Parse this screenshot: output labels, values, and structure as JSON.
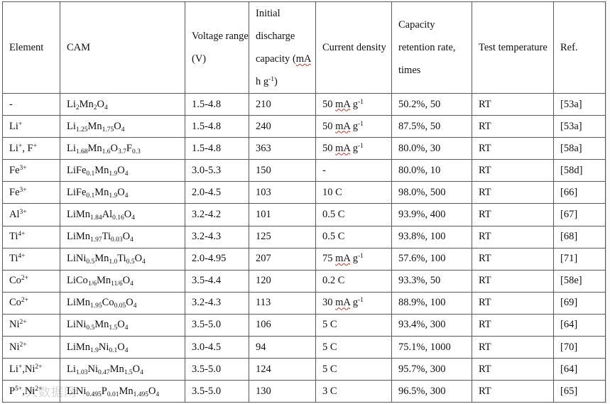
{
  "table": {
    "headers": {
      "element": "Element",
      "cam": "CAM",
      "voltage": "Voltage range (V)",
      "capacity": "Initial discharge capacity",
      "capacity_unit_prefix": "(",
      "capacity_unit_mah": "mA",
      "capacity_unit_suffix": " h g",
      "capacity_unit_sup": "-1",
      "capacity_unit_close": ")",
      "current": "Current density",
      "retention": "Capacity retention rate, times",
      "temperature": "Test temperature",
      "ref": "Ref."
    },
    "current_unit_mah": "mA",
    "current_unit_g": " g",
    "current_unit_sup": "-1",
    "rows": [
      {
        "el_base": "-",
        "el_sup": "",
        "cam": [
          {
            "t": "Li"
          },
          {
            "t": "2",
            "s": "sub"
          },
          {
            "t": "Mn"
          },
          {
            "t": "2",
            "s": "sub"
          },
          {
            "t": "O"
          },
          {
            "t": "4",
            "s": "sub"
          }
        ],
        "voltage": "1.5-4.8",
        "capacity": "210",
        "current_num": "50 ",
        "current_is_mag": true,
        "current_text": "",
        "retention": "50.2%, 50",
        "temp": "RT",
        "ref": "[53a]"
      },
      {
        "el_base": "Li",
        "el_sup": "+",
        "cam": [
          {
            "t": "Li"
          },
          {
            "t": "1.25",
            "s": "sub"
          },
          {
            "t": "Mn"
          },
          {
            "t": "1.75",
            "s": "sub"
          },
          {
            "t": "O"
          },
          {
            "t": "4",
            "s": "sub"
          }
        ],
        "voltage": "1.5-4.8",
        "capacity": "240",
        "current_num": "50 ",
        "current_is_mag": true,
        "current_text": "",
        "retention": "87.5%, 50",
        "temp": "RT",
        "ref": "[53a]"
      },
      {
        "el_base": "Li",
        "el_sup": "+",
        "el_extra_base": ", F",
        "el_extra_sup": "+",
        "cam": [
          {
            "t": "Li"
          },
          {
            "t": "1.68",
            "s": "sub"
          },
          {
            "t": "Mn"
          },
          {
            "t": "1.6",
            "s": "sub"
          },
          {
            "t": "O"
          },
          {
            "t": "3.7",
            "s": "sub"
          },
          {
            "t": "F"
          },
          {
            "t": "0.3",
            "s": "sub"
          }
        ],
        "voltage": "1.5-4.8",
        "capacity": "363",
        "current_num": "50 ",
        "current_is_mag": true,
        "current_text": "",
        "retention": "80.0%, 30",
        "temp": "RT",
        "ref": "[58a]"
      },
      {
        "el_base": "Fe",
        "el_sup": "3+",
        "cam": [
          {
            "t": "LiFe"
          },
          {
            "t": "0.1",
            "s": "sub"
          },
          {
            "t": "Mn"
          },
          {
            "t": "1.9",
            "s": "sub"
          },
          {
            "t": "O"
          },
          {
            "t": "4",
            "s": "sub"
          }
        ],
        "voltage": "3.0-5.3",
        "capacity": "150",
        "current_num": "",
        "current_is_mag": false,
        "current_text": "-",
        "retention": "80.0%, 10",
        "temp": "RT",
        "ref": "[58d]"
      },
      {
        "el_base": "Fe",
        "el_sup": "3+",
        "cam": [
          {
            "t": "LiFe"
          },
          {
            "t": "0.1",
            "s": "sub"
          },
          {
            "t": "Mn"
          },
          {
            "t": "1.9",
            "s": "sub"
          },
          {
            "t": "O"
          },
          {
            "t": "4",
            "s": "sub"
          }
        ],
        "voltage": "2.0-4.5",
        "capacity": "103",
        "current_num": "",
        "current_is_mag": false,
        "current_text": "10 C",
        "retention": "98.0%, 500",
        "temp": "RT",
        "ref": "[66]"
      },
      {
        "el_base": "Al",
        "el_sup": "3+",
        "cam": [
          {
            "t": "LiMn"
          },
          {
            "t": "1.84",
            "s": "sub"
          },
          {
            "t": "Al"
          },
          {
            "t": "0.16",
            "s": "sub"
          },
          {
            "t": "O"
          },
          {
            "t": "4",
            "s": "sub"
          }
        ],
        "voltage": "3.2-4.2",
        "capacity": "101",
        "current_num": "",
        "current_is_mag": false,
        "current_text": "0.5 C",
        "retention": "93.9%, 400",
        "temp": "RT",
        "ref": "[67]"
      },
      {
        "el_base": "Ti",
        "el_sup": "4+",
        "cam": [
          {
            "t": "LiMn"
          },
          {
            "t": "1.97",
            "s": "sub"
          },
          {
            "t": "Ti"
          },
          {
            "t": "0.03",
            "s": "sub"
          },
          {
            "t": "O"
          },
          {
            "t": "4",
            "s": "sub"
          }
        ],
        "voltage": "3.2-4.3",
        "capacity": "125",
        "current_num": "",
        "current_is_mag": false,
        "current_text": "0.5 C",
        "retention": "93.8%, 100",
        "temp": "RT",
        "ref": "[68]"
      },
      {
        "el_base": "Ti",
        "el_sup": "4+",
        "cam": [
          {
            "t": "LiNi"
          },
          {
            "t": "0.5",
            "s": "sub"
          },
          {
            "t": "Mn"
          },
          {
            "t": "1.0",
            "s": "sub"
          },
          {
            "t": "Ti"
          },
          {
            "t": "0.5",
            "s": "sub"
          },
          {
            "t": "O"
          },
          {
            "t": "4",
            "s": "sub"
          }
        ],
        "voltage": "2.0-4.95",
        "capacity": "207",
        "current_num": "75 ",
        "current_is_mag": true,
        "current_text": "",
        "retention": "57.6%, 100",
        "temp": "RT",
        "ref": "[71]"
      },
      {
        "el_base": "Co",
        "el_sup": "2+",
        "cam": [
          {
            "t": "LiCo"
          },
          {
            "t": "1/6",
            "s": "sub"
          },
          {
            "t": "Mn"
          },
          {
            "t": "11/6",
            "s": "sub"
          },
          {
            "t": "O"
          },
          {
            "t": "4",
            "s": "sub"
          }
        ],
        "voltage": "3.5-4.4",
        "capacity": "120",
        "current_num": "",
        "current_is_mag": false,
        "current_text": "0.2 C",
        "retention": "93.3%, 50",
        "temp": "RT",
        "ref": "[58e]"
      },
      {
        "el_base": "Co",
        "el_sup": "2+",
        "cam": [
          {
            "t": "LiMn"
          },
          {
            "t": "1.95",
            "s": "sub"
          },
          {
            "t": "Co"
          },
          {
            "t": "0.05",
            "s": "sub"
          },
          {
            "t": "O"
          },
          {
            "t": "4",
            "s": "sub"
          }
        ],
        "voltage": "3.2-4.3",
        "capacity": "113",
        "current_num": "30 ",
        "current_is_mag": true,
        "current_text": "",
        "retention": "88.9%, 100",
        "temp": "RT",
        "ref": "[69]"
      },
      {
        "el_base": "Ni",
        "el_sup": "2+",
        "cam": [
          {
            "t": "LiNi"
          },
          {
            "t": "0.5",
            "s": "sub"
          },
          {
            "t": "Mn"
          },
          {
            "t": "1.5",
            "s": "sub"
          },
          {
            "t": "O"
          },
          {
            "t": "4",
            "s": "sub"
          }
        ],
        "voltage": "3.5-5.0",
        "capacity": "106",
        "current_num": "",
        "current_is_mag": false,
        "current_text": "5 C",
        "retention": "93.4%, 300",
        "temp": "RT",
        "ref": "[64]"
      },
      {
        "el_base": "Ni",
        "el_sup": "2+",
        "cam": [
          {
            "t": "LiMn"
          },
          {
            "t": "1.9",
            "s": "sub"
          },
          {
            "t": "Ni"
          },
          {
            "t": "0.1",
            "s": "sub"
          },
          {
            "t": "O"
          },
          {
            "t": "4",
            "s": "sub"
          }
        ],
        "voltage": "3.0-4.5",
        "capacity": "94",
        "current_num": "",
        "current_is_mag": false,
        "current_text": "5 C",
        "retention": "75.1%, 1000",
        "temp": "RT",
        "ref": "[70]"
      },
      {
        "el_base": "Li",
        "el_sup": "+",
        "el_extra_base": ",Ni",
        "el_extra_sup": "2+",
        "cam": [
          {
            "t": "Li"
          },
          {
            "t": "1.03",
            "s": "sub"
          },
          {
            "t": "Ni"
          },
          {
            "t": "0.47",
            "s": "sub"
          },
          {
            "t": "Mn"
          },
          {
            "t": "1.5",
            "s": "sub"
          },
          {
            "t": "O"
          },
          {
            "t": "4",
            "s": "sub"
          }
        ],
        "voltage": "3.5-5.0",
        "capacity": "124",
        "current_num": "",
        "current_is_mag": false,
        "current_text": "5 C",
        "retention": "95.7%, 300",
        "temp": "RT",
        "ref": "[64]"
      },
      {
        "el_base": "P",
        "el_sup": "5+",
        "el_extra_base": ",Ni",
        "el_extra_sup": "2+",
        "cam": [
          {
            "t": "LiNi"
          },
          {
            "t": "0.495",
            "s": "sub"
          },
          {
            "t": "P"
          },
          {
            "t": "0.01",
            "s": "sub"
          },
          {
            "t": "Mn"
          },
          {
            "t": "1.495",
            "s": "sub"
          },
          {
            "t": "O"
          },
          {
            "t": "4",
            "s": "sub"
          }
        ],
        "voltage": "3.5-5.0",
        "capacity": "130",
        "current_num": "",
        "current_is_mag": false,
        "current_text": "3 C",
        "retention": "96.5%, 300",
        "temp": "RT",
        "ref": "[65]"
      }
    ]
  },
  "watermark": {
    "text": "大数据网"
  }
}
